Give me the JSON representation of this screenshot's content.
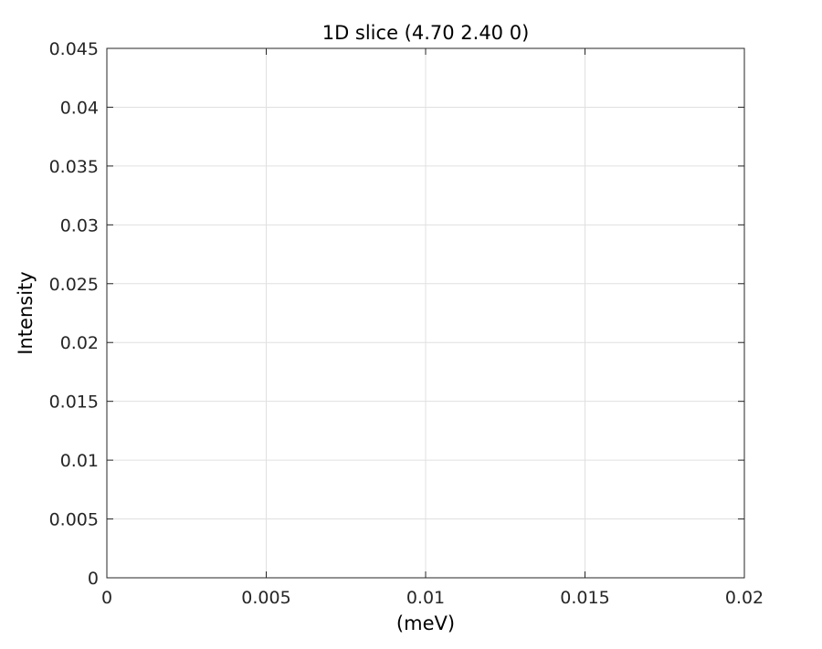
{
  "chart_data": {
    "type": "line",
    "title": "1D slice (4.70 2.40 0)",
    "xlabel": "(meV)",
    "ylabel": "Intensity",
    "xlim": [
      0,
      0.02
    ],
    "ylim": [
      0,
      0.045
    ],
    "x_ticks": [
      "0",
      "0.005",
      "0.01",
      "0.015",
      "0.02"
    ],
    "y_ticks": [
      "0",
      "0.005",
      "0.01",
      "0.015",
      "0.02",
      "0.025",
      "0.03",
      "0.035",
      "0.04",
      "0.045"
    ],
    "grid": true,
    "series": []
  },
  "colors": {
    "axis": "#262626",
    "grid": "#e0e0e0",
    "background": "#ffffff"
  }
}
